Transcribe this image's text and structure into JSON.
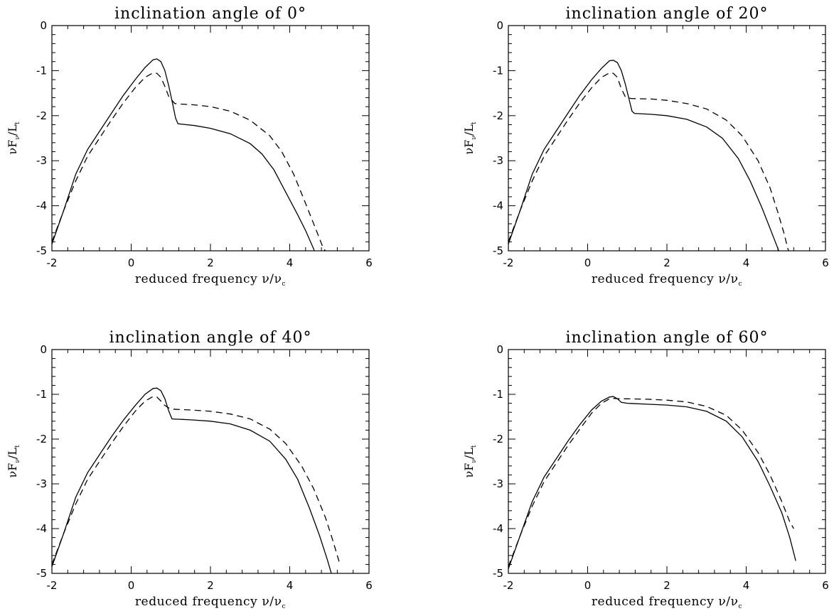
{
  "chart_data": [
    {
      "type": "line",
      "title": "inclination angle of 0°",
      "xlabel_prefix": "reduced frequency ",
      "xlabel_symbol": "ν/ν",
      "xlabel_sub": "c",
      "ylabel_prefix": "νF",
      "ylabel_sub1": "ν",
      "ylabel_mid": "/L",
      "ylabel_sub2": "t",
      "xlim": [
        -2,
        6
      ],
      "ylim": [
        -5,
        0
      ],
      "xticks": [
        "-2",
        "0",
        "2",
        "4",
        "6"
      ],
      "yticks": [
        "0",
        "-1",
        "-2",
        "-3",
        "-4",
        "-5"
      ],
      "grid": false,
      "series": [
        {
          "style": "solid",
          "points": [
            [
              -2,
              -4.85
            ],
            [
              -1.7,
              -4.1
            ],
            [
              -1.4,
              -3.3
            ],
            [
              -1.1,
              -2.75
            ],
            [
              -0.8,
              -2.35
            ],
            [
              -0.5,
              -1.95
            ],
            [
              -0.2,
              -1.55
            ],
            [
              0.1,
              -1.2
            ],
            [
              0.35,
              -0.93
            ],
            [
              0.55,
              -0.76
            ],
            [
              0.65,
              -0.74
            ],
            [
              0.75,
              -0.8
            ],
            [
              0.85,
              -1.0
            ],
            [
              0.95,
              -1.35
            ],
            [
              1.05,
              -1.75
            ],
            [
              1.12,
              -2.05
            ],
            [
              1.18,
              -2.18
            ],
            [
              1.6,
              -2.22
            ],
            [
              2.0,
              -2.28
            ],
            [
              2.5,
              -2.4
            ],
            [
              3.0,
              -2.62
            ],
            [
              3.3,
              -2.85
            ],
            [
              3.6,
              -3.2
            ],
            [
              3.9,
              -3.7
            ],
            [
              4.2,
              -4.2
            ],
            [
              4.4,
              -4.55
            ],
            [
              4.6,
              -4.95
            ],
            [
              4.62,
              -5.0
            ]
          ]
        },
        {
          "style": "dashed",
          "points": [
            [
              -2,
              -4.8
            ],
            [
              -1.7,
              -4.1
            ],
            [
              -1.4,
              -3.45
            ],
            [
              -1.1,
              -2.9
            ],
            [
              -0.8,
              -2.5
            ],
            [
              -0.5,
              -2.1
            ],
            [
              -0.2,
              -1.72
            ],
            [
              0.1,
              -1.38
            ],
            [
              0.35,
              -1.15
            ],
            [
              0.55,
              -1.05
            ],
            [
              0.65,
              -1.06
            ],
            [
              0.75,
              -1.15
            ],
            [
              0.85,
              -1.35
            ],
            [
              0.95,
              -1.58
            ],
            [
              1.1,
              -1.73
            ],
            [
              1.2,
              -1.74
            ],
            [
              1.6,
              -1.76
            ],
            [
              2.0,
              -1.8
            ],
            [
              2.5,
              -1.9
            ],
            [
              3.0,
              -2.1
            ],
            [
              3.5,
              -2.45
            ],
            [
              3.8,
              -2.8
            ],
            [
              4.1,
              -3.3
            ],
            [
              4.4,
              -3.95
            ],
            [
              4.65,
              -4.5
            ],
            [
              4.85,
              -4.95
            ],
            [
              4.9,
              -5.0
            ]
          ]
        }
      ]
    },
    {
      "type": "line",
      "title": "inclination angle of 20°",
      "xlabel_prefix": "reduced frequency ",
      "xlabel_symbol": "ν/ν",
      "xlabel_sub": "c",
      "ylabel_prefix": "νF",
      "ylabel_sub1": "ν",
      "ylabel_mid": "/L",
      "ylabel_sub2": "t",
      "xlim": [
        -2,
        6
      ],
      "ylim": [
        -5,
        0
      ],
      "xticks": [
        "-2",
        "0",
        "2",
        "4",
        "6"
      ],
      "yticks": [
        "0",
        "-1",
        "-2",
        "-3",
        "-4",
        "-5"
      ],
      "grid": false,
      "series": [
        {
          "style": "solid",
          "points": [
            [
              -2,
              -4.85
            ],
            [
              -1.7,
              -4.1
            ],
            [
              -1.4,
              -3.3
            ],
            [
              -1.1,
              -2.75
            ],
            [
              -0.8,
              -2.35
            ],
            [
              -0.5,
              -1.95
            ],
            [
              -0.2,
              -1.55
            ],
            [
              0.1,
              -1.2
            ],
            [
              0.35,
              -0.95
            ],
            [
              0.55,
              -0.78
            ],
            [
              0.65,
              -0.77
            ],
            [
              0.75,
              -0.82
            ],
            [
              0.85,
              -1.0
            ],
            [
              0.95,
              -1.3
            ],
            [
              1.05,
              -1.65
            ],
            [
              1.12,
              -1.9
            ],
            [
              1.18,
              -1.95
            ],
            [
              1.6,
              -1.97
            ],
            [
              2.0,
              -2.0
            ],
            [
              2.5,
              -2.08
            ],
            [
              3.0,
              -2.25
            ],
            [
              3.4,
              -2.5
            ],
            [
              3.8,
              -2.95
            ],
            [
              4.1,
              -3.45
            ],
            [
              4.4,
              -4.05
            ],
            [
              4.6,
              -4.5
            ],
            [
              4.8,
              -4.95
            ],
            [
              4.82,
              -5.0
            ]
          ]
        },
        {
          "style": "dashed",
          "points": [
            [
              -2,
              -4.8
            ],
            [
              -1.7,
              -4.1
            ],
            [
              -1.4,
              -3.45
            ],
            [
              -1.1,
              -2.9
            ],
            [
              -0.8,
              -2.5
            ],
            [
              -0.5,
              -2.1
            ],
            [
              -0.2,
              -1.72
            ],
            [
              0.1,
              -1.38
            ],
            [
              0.35,
              -1.15
            ],
            [
              0.55,
              -1.05
            ],
            [
              0.65,
              -1.06
            ],
            [
              0.75,
              -1.15
            ],
            [
              0.85,
              -1.4
            ],
            [
              0.95,
              -1.58
            ],
            [
              1.1,
              -1.62
            ],
            [
              1.6,
              -1.63
            ],
            [
              2.0,
              -1.66
            ],
            [
              2.5,
              -1.73
            ],
            [
              3.0,
              -1.85
            ],
            [
              3.5,
              -2.1
            ],
            [
              3.9,
              -2.45
            ],
            [
              4.3,
              -3.0
            ],
            [
              4.6,
              -3.6
            ],
            [
              4.8,
              -4.15
            ],
            [
              4.95,
              -4.6
            ],
            [
              5.05,
              -4.95
            ],
            [
              5.07,
              -5.0
            ]
          ]
        }
      ]
    },
    {
      "type": "line",
      "title": "inclination angle of 40°",
      "xlabel_prefix": "reduced frequency ",
      "xlabel_symbol": "ν/ν",
      "xlabel_sub": "c",
      "ylabel_prefix": "νF",
      "ylabel_sub1": "ν",
      "ylabel_mid": "/L",
      "ylabel_sub2": "t",
      "xlim": [
        -2,
        6
      ],
      "ylim": [
        -5,
        0
      ],
      "xticks": [
        "-2",
        "0",
        "2",
        "4",
        "6"
      ],
      "yticks": [
        "0",
        "-1",
        "-2",
        "-3",
        "-4",
        "-5"
      ],
      "grid": false,
      "series": [
        {
          "style": "solid",
          "points": [
            [
              -2,
              -4.85
            ],
            [
              -1.7,
              -4.1
            ],
            [
              -1.4,
              -3.3
            ],
            [
              -1.1,
              -2.75
            ],
            [
              -0.8,
              -2.35
            ],
            [
              -0.5,
              -1.95
            ],
            [
              -0.2,
              -1.58
            ],
            [
              0.1,
              -1.25
            ],
            [
              0.35,
              -1.0
            ],
            [
              0.55,
              -0.87
            ],
            [
              0.65,
              -0.86
            ],
            [
              0.75,
              -0.92
            ],
            [
              0.85,
              -1.1
            ],
            [
              0.95,
              -1.38
            ],
            [
              1.03,
              -1.55
            ],
            [
              1.5,
              -1.57
            ],
            [
              2.0,
              -1.6
            ],
            [
              2.5,
              -1.66
            ],
            [
              3.0,
              -1.8
            ],
            [
              3.5,
              -2.05
            ],
            [
              3.9,
              -2.45
            ],
            [
              4.2,
              -2.9
            ],
            [
              4.5,
              -3.55
            ],
            [
              4.75,
              -4.15
            ],
            [
              4.95,
              -4.7
            ],
            [
              5.05,
              -5.0
            ]
          ]
        },
        {
          "style": "dashed",
          "points": [
            [
              -2,
              -4.8
            ],
            [
              -1.7,
              -4.1
            ],
            [
              -1.4,
              -3.45
            ],
            [
              -1.1,
              -2.9
            ],
            [
              -0.8,
              -2.5
            ],
            [
              -0.5,
              -2.1
            ],
            [
              -0.2,
              -1.72
            ],
            [
              0.1,
              -1.38
            ],
            [
              0.35,
              -1.15
            ],
            [
              0.55,
              -1.05
            ],
            [
              0.65,
              -1.06
            ],
            [
              0.75,
              -1.15
            ],
            [
              0.85,
              -1.25
            ],
            [
              1.0,
              -1.33
            ],
            [
              1.5,
              -1.35
            ],
            [
              2.0,
              -1.38
            ],
            [
              2.5,
              -1.44
            ],
            [
              3.0,
              -1.55
            ],
            [
              3.5,
              -1.78
            ],
            [
              3.9,
              -2.1
            ],
            [
              4.3,
              -2.6
            ],
            [
              4.6,
              -3.1
            ],
            [
              4.9,
              -3.75
            ],
            [
              5.1,
              -4.3
            ],
            [
              5.25,
              -4.75
            ]
          ]
        }
      ]
    },
    {
      "type": "line",
      "title": "inclination angle of 60°",
      "xlabel_prefix": "reduced frequency ",
      "xlabel_symbol": "ν/ν",
      "xlabel_sub": "c",
      "ylabel_prefix": "νF",
      "ylabel_sub1": "ν",
      "ylabel_mid": "/L",
      "ylabel_sub2": "t",
      "xlim": [
        -2,
        6
      ],
      "ylim": [
        -5,
        0
      ],
      "xticks": [
        "-2",
        "0",
        "2",
        "4",
        "6"
      ],
      "yticks": [
        "0",
        "-1",
        "-2",
        "-3",
        "-4",
        "-5"
      ],
      "grid": false,
      "series": [
        {
          "style": "solid",
          "points": [
            [
              -2,
              -4.9
            ],
            [
              -1.7,
              -4.15
            ],
            [
              -1.4,
              -3.4
            ],
            [
              -1.1,
              -2.85
            ],
            [
              -0.8,
              -2.45
            ],
            [
              -0.5,
              -2.05
            ],
            [
              -0.2,
              -1.68
            ],
            [
              0.1,
              -1.35
            ],
            [
              0.35,
              -1.15
            ],
            [
              0.55,
              -1.06
            ],
            [
              0.65,
              -1.05
            ],
            [
              0.75,
              -1.1
            ],
            [
              0.85,
              -1.18
            ],
            [
              1.0,
              -1.2
            ],
            [
              1.5,
              -1.22
            ],
            [
              2.0,
              -1.24
            ],
            [
              2.5,
              -1.28
            ],
            [
              3.0,
              -1.38
            ],
            [
              3.5,
              -1.6
            ],
            [
              3.9,
              -1.95
            ],
            [
              4.3,
              -2.5
            ],
            [
              4.6,
              -3.05
            ],
            [
              4.9,
              -3.65
            ],
            [
              5.1,
              -4.2
            ],
            [
              5.25,
              -4.72
            ]
          ]
        },
        {
          "style": "dashed",
          "points": [
            [
              -2,
              -4.85
            ],
            [
              -1.7,
              -4.15
            ],
            [
              -1.4,
              -3.5
            ],
            [
              -1.1,
              -2.95
            ],
            [
              -0.8,
              -2.55
            ],
            [
              -0.5,
              -2.15
            ],
            [
              -0.2,
              -1.78
            ],
            [
              0.1,
              -1.42
            ],
            [
              0.35,
              -1.2
            ],
            [
              0.55,
              -1.1
            ],
            [
              0.65,
              -1.09
            ],
            [
              0.8,
              -1.1
            ],
            [
              1.0,
              -1.1
            ],
            [
              1.5,
              -1.11
            ],
            [
              2.0,
              -1.13
            ],
            [
              2.5,
              -1.17
            ],
            [
              3.0,
              -1.27
            ],
            [
              3.5,
              -1.47
            ],
            [
              3.9,
              -1.8
            ],
            [
              4.3,
              -2.3
            ],
            [
              4.6,
              -2.8
            ],
            [
              4.9,
              -3.4
            ],
            [
              5.1,
              -3.85
            ],
            [
              5.2,
              -4.0
            ]
          ]
        }
      ]
    }
  ]
}
